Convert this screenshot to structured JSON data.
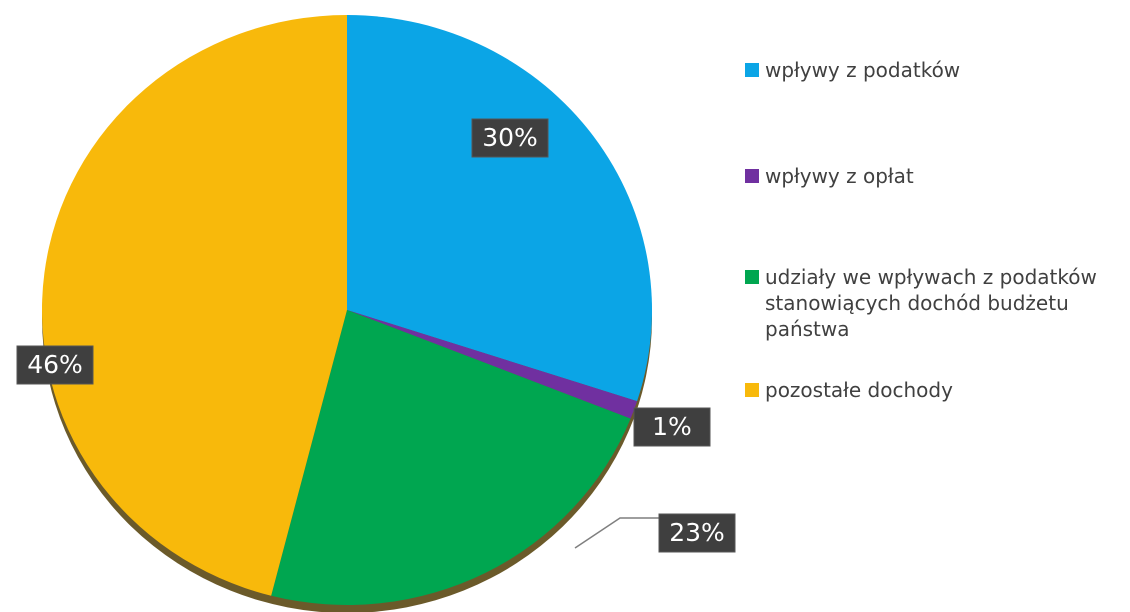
{
  "chart_data": {
    "type": "pie",
    "categories": [
      "wpływy z podatków",
      "wpływy z opłat",
      "udziały we wpływach z podatków stanowiących dochód budżetu państwa",
      "pozostałe dochody"
    ],
    "values": [
      30,
      1,
      23,
      46
    ],
    "value_labels": [
      "30%",
      "1%",
      "23%",
      "46%"
    ],
    "colors": [
      "#0ba5e6",
      "#7030a0",
      "#00a650",
      "#f8b90b"
    ],
    "legend": "right"
  }
}
